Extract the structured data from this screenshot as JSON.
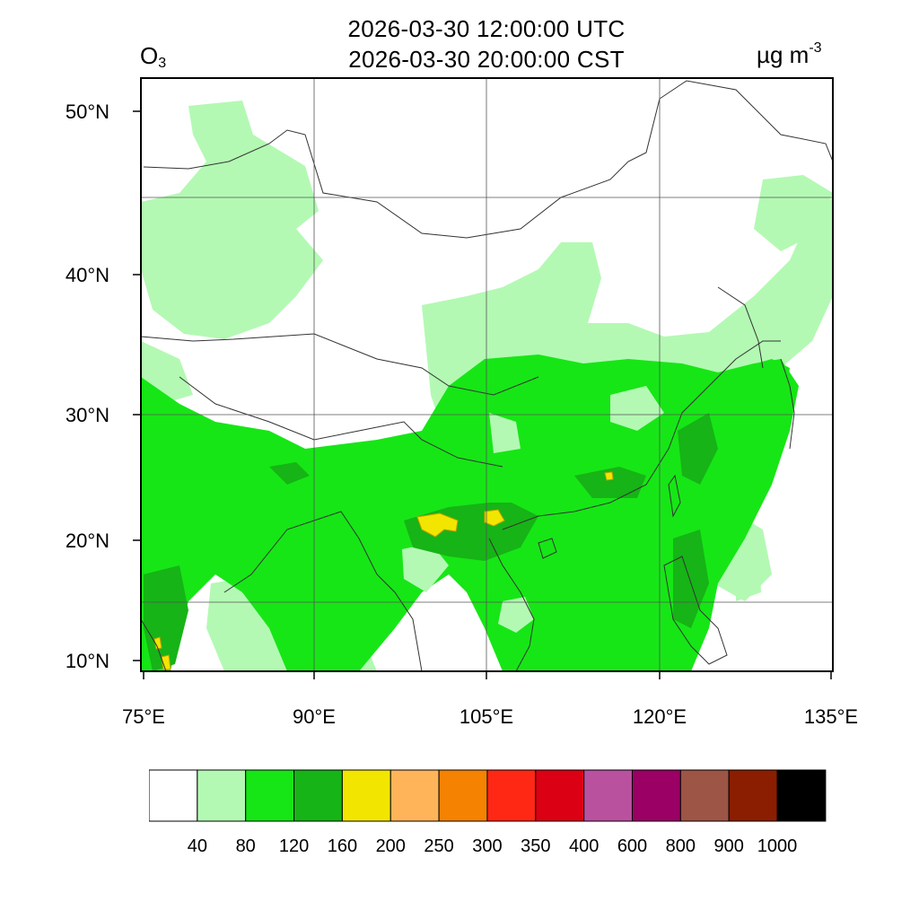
{
  "header": {
    "variable": "O",
    "variable_subscript": "3",
    "title_utc": "2026-03-30 12:00:00 UTC",
    "title_local": "2026-03-30 20:00:00 CST",
    "unit": "µg m",
    "unit_exponent": "-3"
  },
  "map": {
    "lat_labels": [
      "50°N",
      "40°N",
      "30°N",
      "20°N",
      "10°N"
    ],
    "lon_labels": [
      "75°E",
      "90°E",
      "105°E",
      "120°E",
      "135°E"
    ],
    "lat_range": [
      9,
      52
    ],
    "lon_range": [
      75,
      135
    ],
    "grid_lines": true
  },
  "colorbar": {
    "levels": [
      "40",
      "80",
      "120",
      "160",
      "200",
      "250",
      "300",
      "350",
      "400",
      "600",
      "800",
      "900",
      "1000"
    ],
    "colors": [
      "#ffffff",
      "#b3f9b3",
      "#16e616",
      "#16b416",
      "#f2e600",
      "#ffb45a",
      "#f58200",
      "#ff2814",
      "#dc0014",
      "#b9519f",
      "#9b0064",
      "#9d5545",
      "#8b1e00",
      "#000000"
    ]
  }
}
